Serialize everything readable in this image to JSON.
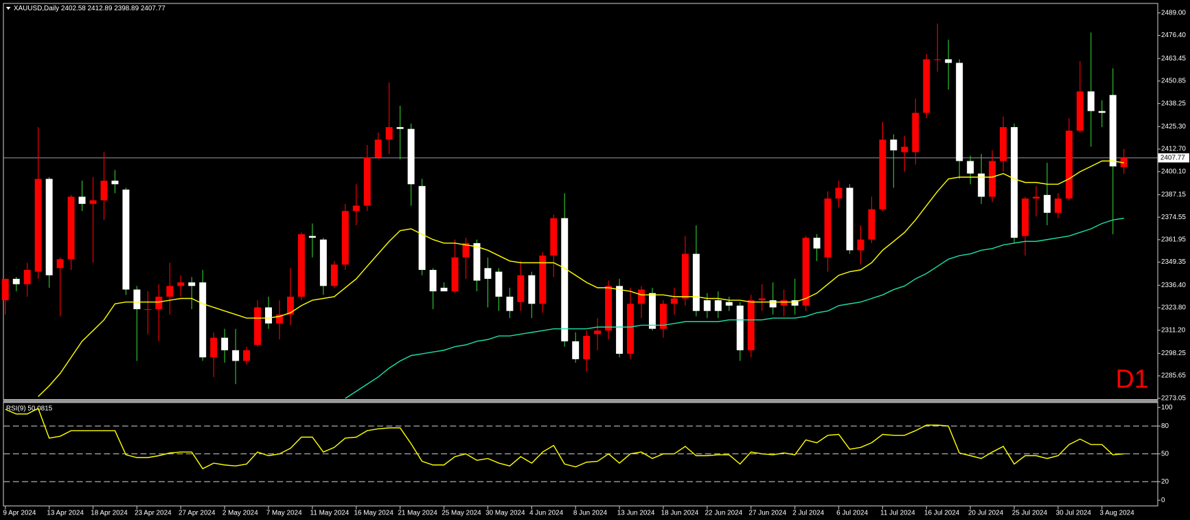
{
  "chart_data": {
    "type": "candlestick",
    "title": "XAUUSD,Daily",
    "annotation": "D1",
    "up_color": "#ff0000",
    "down_color": "#ffffff",
    "down_wick_color": "#32cd32",
    "bid_line_color": "#8a8a9a",
    "ylim": [
      2272.6,
      2494.1
    ],
    "yticks": [
      {
        "value": 2489,
        "label": "2489.00"
      },
      {
        "value": 2476.4,
        "label": "2476.40"
      },
      2463.45,
      2450.85,
      2438.25,
      {
        "value": 2425.3,
        "label": "2425.30"
      },
      {
        "value": 2412.7,
        "label": "2412.70"
      },
      {
        "value": 2400.1,
        "label": "2400.10"
      },
      2387.15,
      2374.55,
      2361.95,
      2349.35,
      {
        "value": 2336.4,
        "label": "2336.40"
      },
      {
        "value": 2323.8,
        "label": "2323.80"
      },
      {
        "value": 2311.2,
        "label": "2311.20"
      },
      2298.25,
      2285.65,
      2273.05
    ],
    "categories": [
      "9 Apr 2024",
      null,
      null,
      null,
      "13 Apr 2024",
      null,
      null,
      null,
      "18 Apr 2024",
      null,
      null,
      null,
      "23 Apr 2024",
      null,
      null,
      null,
      "27 Apr 2024",
      null,
      null,
      null,
      "2 May 2024",
      null,
      null,
      null,
      "7 May 2024",
      null,
      null,
      null,
      "11 May 2024",
      null,
      null,
      null,
      "16 May 2024",
      null,
      null,
      null,
      "21 May 2024",
      null,
      null,
      null,
      "25 May 2024",
      null,
      null,
      null,
      "30 May 2024",
      null,
      null,
      null,
      "4 Jun 2024",
      null,
      null,
      null,
      "8 Jun 2024",
      null,
      null,
      null,
      "13 Jun 2024",
      null,
      null,
      null,
      "18 Jun 2024",
      null,
      null,
      null,
      "22 Jun 2024",
      null,
      null,
      null,
      "27 Jun 2024",
      null,
      null,
      null,
      "2 Jul 2024",
      null,
      null,
      null,
      "6 Jul 2024",
      null,
      null,
      null,
      "11 Jul 2024",
      null,
      null,
      null,
      "16 Jul 2024",
      null,
      null,
      null,
      "20 Jul 2024",
      null,
      null,
      null,
      "25 Jul 2024",
      null,
      null,
      null,
      "30 Jul 2024",
      null,
      null,
      null,
      "3 Aug 2024",
      null,
      null
    ],
    "open": [
      2328,
      2340,
      2337,
      2344,
      2396,
      2346,
      2351,
      2386,
      2382,
      2384,
      2395,
      2390,
      2334,
      2323,
      2323,
      2330,
      2336,
      2338,
      2338,
      2296,
      2307,
      2300,
      2294,
      2303,
      2324,
      2315,
      2320,
      2330,
      2364,
      2362,
      2336,
      2348,
      2378,
      2381,
      2408,
      2418,
      2425,
      2424,
      2392,
      2345,
      2335,
      2333,
      2352,
      2360,
      2346,
      2344,
      2330,
      2327,
      2342,
      2326,
      2353,
      2374,
      2305,
      2295,
      2309,
      2311,
      2336,
      2298,
      2326,
      2332,
      2312,
      2326,
      2329,
      2354,
      2328,
      2328,
      2327,
      2325,
      2300,
      2328,
      2328,
      2325,
      2328,
      2325,
      2363,
      2352,
      2385,
      2391,
      2356,
      2362,
      2379,
      2418,
      2411,
      2411,
      2433,
      2463,
      2463,
      2461,
      2406,
      2399,
      2386,
      2406,
      2425,
      2364,
      2385,
      2387,
      2377,
      2385,
      2423,
      2445,
      2434,
      2443,
      2402.58
    ],
    "high": [
      2340,
      2341,
      2349,
      2425,
      2397,
      2352,
      2387,
      2395,
      2397,
      2411,
      2401,
      2391,
      2336,
      2333,
      2337,
      2349,
      2342,
      2341,
      2345,
      2310,
      2312,
      2312,
      2302,
      2328,
      2330,
      2328,
      2346,
      2366,
      2371,
      2363,
      2350,
      2382,
      2393,
      2415,
      2422,
      2450,
      2437,
      2427,
      2396,
      2346,
      2338,
      2362,
      2363,
      2362,
      2352,
      2346,
      2335,
      2350,
      2344,
      2355,
      2376,
      2388,
      2310,
      2311,
      2318,
      2339,
      2340,
      2335,
      2336,
      2335,
      2328,
      2335,
      2364,
      2370,
      2332,
      2333,
      2330,
      2327,
      2331,
      2337,
      2338,
      2334,
      2340,
      2364,
      2365,
      2389,
      2395,
      2393,
      2370,
      2386,
      2428,
      2421,
      2420,
      2441,
      2466,
      2483,
      2474,
      2463,
      2409,
      2410,
      2412,
      2431,
      2427,
      2386,
      2392,
      2405,
      2388,
      2430,
      2462,
      2478,
      2440,
      2458,
      2412.89
    ],
    "low": [
      2320,
      2333,
      2330,
      2340,
      2335,
      2319,
      2345,
      2378,
      2349,
      2373,
      2388,
      2331,
      2294,
      2309,
      2305,
      2320,
      2330,
      2323,
      2294,
      2285,
      2293,
      2281,
      2292,
      2302,
      2312,
      2306,
      2314,
      2328,
      2352,
      2331,
      2335,
      2345,
      2370,
      2378,
      2407,
      2410,
      2407,
      2381,
      2342,
      2323,
      2333,
      2332,
      2340,
      2333,
      2324,
      2322,
      2318,
      2322,
      2318,
      2321,
      2341,
      2302,
      2293,
      2288,
      2300,
      2306,
      2296,
      2295,
      2318,
      2311,
      2307,
      2320,
      2325,
      2319,
      2318,
      2318,
      2322,
      2294,
      2296,
      2322,
      2320,
      2319,
      2320,
      2322,
      2350,
      2344,
      2380,
      2354,
      2348,
      2360,
      2378,
      2391,
      2400,
      2404,
      2430,
      2456,
      2446,
      2396,
      2393,
      2382,
      2383,
      2400,
      2360,
      2353,
      2375,
      2370,
      2374,
      2384,
      2422,
      2414,
      2425,
      2365,
      2398.89
    ],
    "close": [
      2340,
      2337,
      2345,
      2396,
      2342,
      2351,
      2386,
      2382,
      2384,
      2395,
      2393,
      2334,
      2323,
      2323,
      2330,
      2336,
      2338,
      2336,
      2296,
      2307,
      2300,
      2294,
      2300,
      2324,
      2315,
      2320,
      2330,
      2365,
      2363,
      2336,
      2348,
      2378,
      2381,
      2408,
      2418,
      2425,
      2424,
      2393,
      2345,
      2333,
      2333,
      2352,
      2360,
      2339,
      2340,
      2330,
      2322,
      2342,
      2326,
      2353,
      2374,
      2305,
      2295,
      2308,
      2311,
      2336,
      2298,
      2326,
      2334,
      2312,
      2326,
      2329,
      2354,
      2322,
      2322,
      2322,
      2325,
      2300,
      2328,
      2329,
      2324,
      2328,
      2325,
      2363,
      2357,
      2385,
      2391,
      2356,
      2362,
      2379,
      2418,
      2412,
      2414,
      2433,
      2463,
      2463,
      2461,
      2406,
      2399,
      2386,
      2406,
      2425,
      2363,
      2385,
      2386,
      2377,
      2385,
      2423,
      2445,
      2434,
      2433,
      2403,
      2407.77
    ],
    "moving_averages": [
      {
        "color": "#ffff00",
        "values": [
          null,
          null,
          null,
          2274,
          2280,
          2287,
          2296,
          2305,
          2311,
          2317,
          2326,
          2327,
          2327,
          2327,
          2327,
          2328,
          2329,
          2329,
          2326,
          2324,
          2322,
          2320,
          2318,
          2318,
          2318,
          2319,
          2321,
          2325,
          2328,
          2329,
          2330,
          2335,
          2340,
          2347,
          2354,
          2361,
          2367,
          2368,
          2365,
          2362,
          2360,
          2360,
          2359,
          2358,
          2356,
          2353,
          2350,
          2349,
          2349,
          2349,
          2349,
          2346,
          2342,
          2338,
          2335,
          2335,
          2334,
          2333,
          2331,
          2331,
          2331,
          2330,
          2330,
          2330,
          2329,
          2329,
          2328,
          2328,
          2327,
          2327,
          2327,
          2327,
          2327,
          2329,
          2332,
          2337,
          2342,
          2344,
          2345,
          2349,
          2356,
          2361,
          2366,
          2373,
          2381,
          2389,
          2396,
          2397,
          2397,
          2397,
          2397,
          2399,
          2396,
          2394,
          2394,
          2393,
          2393,
          2396,
          2400,
          2403,
          2406,
          2406,
          2405
        ]
      },
      {
        "color": "#1ee0a8",
        "values": [
          null,
          null,
          null,
          null,
          null,
          null,
          null,
          null,
          null,
          null,
          null,
          null,
          null,
          null,
          null,
          null,
          null,
          null,
          null,
          null,
          null,
          null,
          null,
          null,
          null,
          null,
          null,
          null,
          null,
          null,
          null,
          2273,
          2277,
          2281,
          2285,
          2290,
          2294,
          2297,
          2298,
          2299,
          2300,
          2302,
          2303,
          2305,
          2306,
          2308,
          2308,
          2309,
          2310,
          2311,
          2312,
          2312,
          2312,
          2312,
          2313,
          2313,
          2313,
          2313,
          2314,
          2314,
          2314,
          2315,
          2316,
          2316,
          2316,
          2316,
          2317,
          2317,
          2317,
          2317,
          2318,
          2318,
          2318,
          2319,
          2321,
          2322,
          2325,
          2326,
          2327,
          2329,
          2331,
          2334,
          2336,
          2340,
          2343,
          2347,
          2351,
          2353,
          2354,
          2356,
          2357,
          2359,
          2360,
          2361,
          2361,
          2362,
          2363,
          2364,
          2366,
          2368,
          2371,
          2373,
          2374
        ]
      }
    ],
    "rsi": {
      "name": "RSI(9)",
      "last": 50.0815,
      "color": "#ffff00",
      "ylim": [
        0,
        100
      ],
      "yticks": [
        0,
        20,
        50,
        80,
        100
      ],
      "values": [
        98,
        93,
        93,
        99,
        67,
        69,
        75,
        75,
        75,
        75,
        75,
        49,
        46,
        46,
        48,
        51,
        52,
        52,
        34,
        40,
        38,
        37,
        39,
        52,
        48,
        50,
        56,
        68,
        68,
        52,
        57,
        67,
        68,
        75,
        77,
        78,
        78,
        61,
        42,
        38,
        38,
        47,
        50,
        43,
        45,
        40,
        37,
        47,
        40,
        52,
        59,
        39,
        36,
        41,
        42,
        50,
        40,
        50,
        52,
        45,
        50,
        50,
        58,
        48,
        48,
        49,
        49,
        39,
        52,
        50,
        49,
        51,
        49,
        65,
        62,
        70,
        71,
        55,
        57,
        62,
        71,
        70,
        70,
        75,
        81,
        81,
        80,
        51,
        48,
        45,
        52,
        58,
        39,
        48,
        48,
        45,
        48,
        60,
        66,
        60,
        60,
        49,
        50
      ]
    }
  }
}
